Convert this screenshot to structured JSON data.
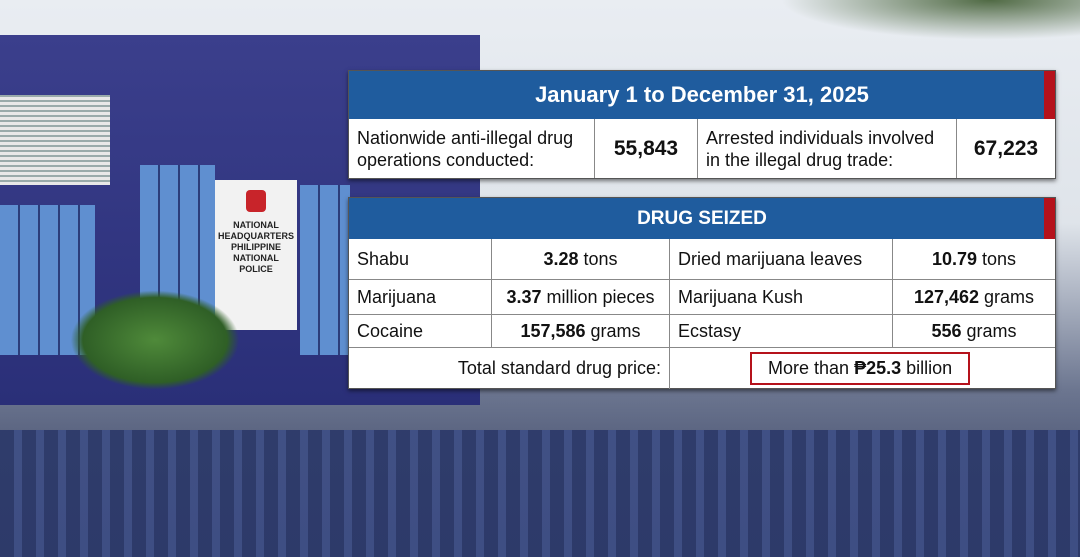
{
  "period_header": "January 1 to December 31, 2025",
  "summary": [
    {
      "label": "Nationwide anti-illegal drug operations conducted:",
      "value": "55,843"
    },
    {
      "label": "Arrested individuals involved in the illegal drug trade:",
      "value": "67,223"
    }
  ],
  "seized_header": "DRUG SEIZED",
  "drugs": [
    {
      "name": "Shabu",
      "amount": "3.28",
      "unit": "tons"
    },
    {
      "name": "Dried marijuana leaves",
      "amount": "10.79",
      "unit": "tons"
    },
    {
      "name": "Marijuana",
      "amount": "3.37",
      "unit": "million pieces"
    },
    {
      "name": "Marijuana Kush",
      "amount": "127,462",
      "unit": "grams"
    },
    {
      "name": "Cocaine",
      "amount": "157,586",
      "unit": "grams"
    },
    {
      "name": "Ecstasy",
      "amount": "556",
      "unit": "grams"
    }
  ],
  "total": {
    "label": "Total standard drug price:",
    "prefix": "More than",
    "amount": "₱25.3",
    "unit": "billion"
  },
  "sign": {
    "line1": "NATIONAL",
    "line2": "HEADQUARTERS",
    "line3": "PHILIPPINE",
    "line4": "NATIONAL",
    "line5": "POLICE"
  },
  "colors": {
    "header_blue": "#1f5c9e",
    "accent_red": "#b5121b"
  }
}
